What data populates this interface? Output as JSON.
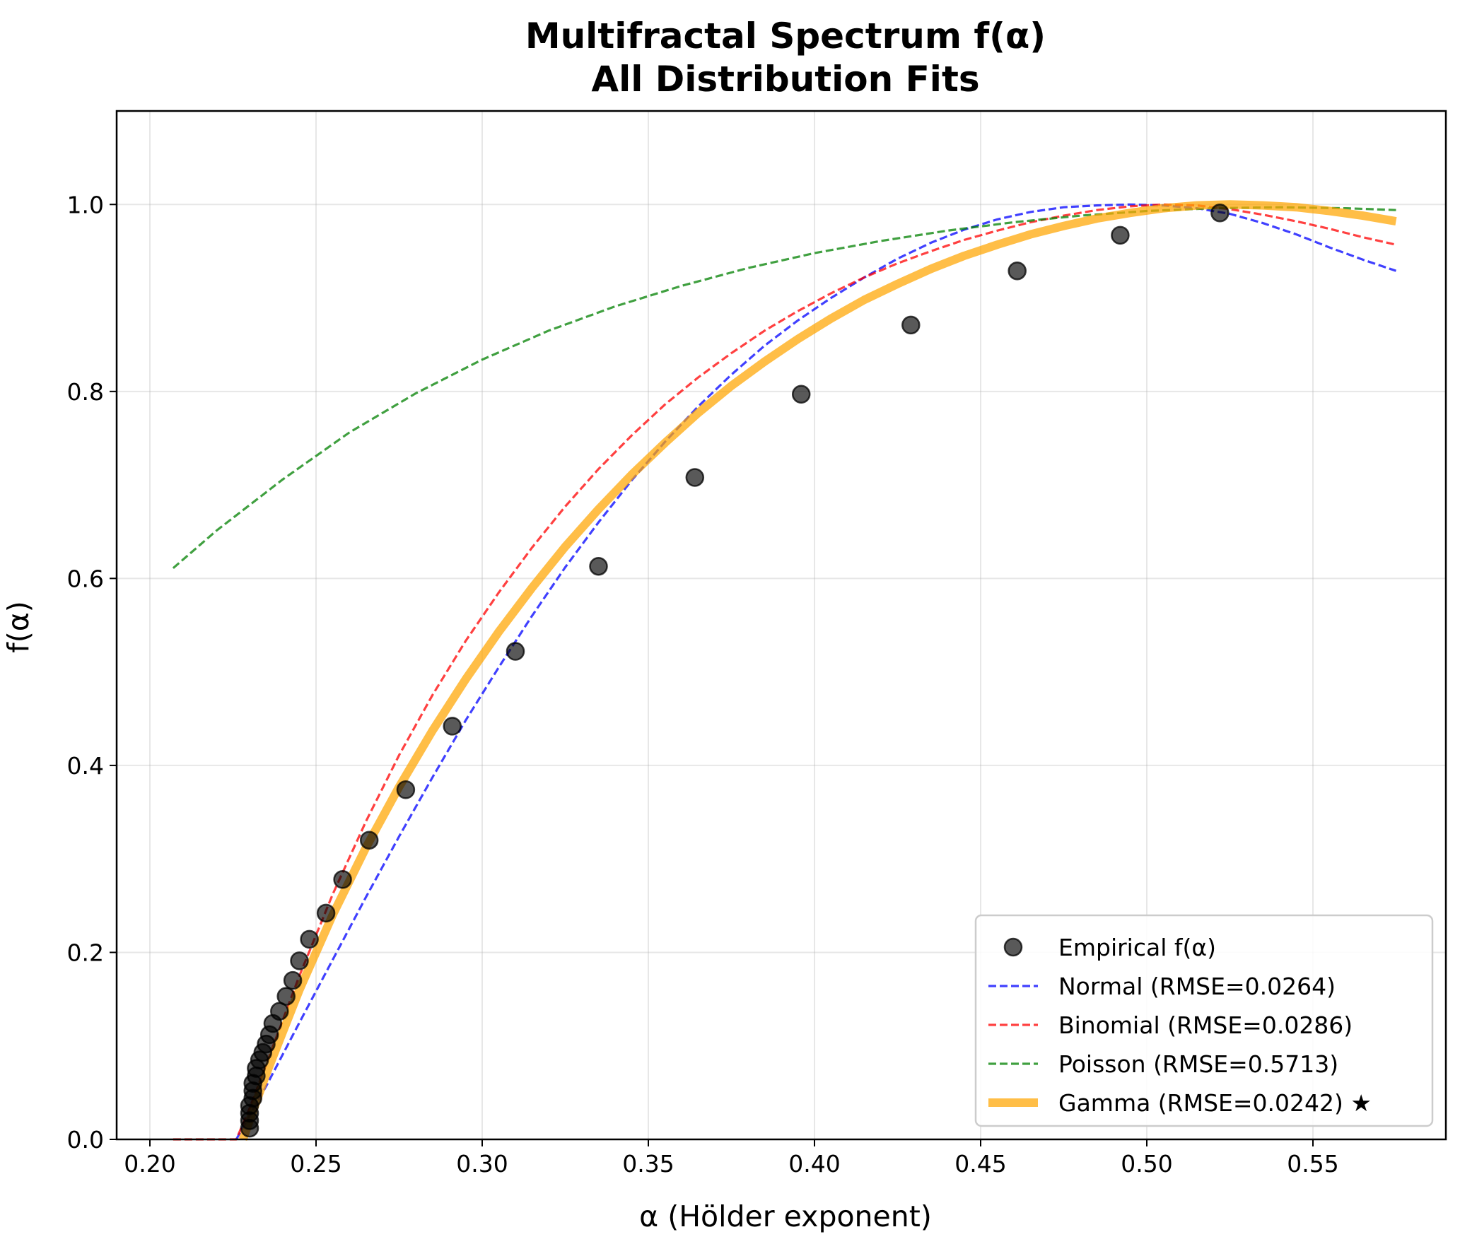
{
  "chart_data": {
    "type": "scatter",
    "title": "Multifractal Spectrum f(α)",
    "subtitle": "All Distribution Fits",
    "xlabel": "α (Hölder exponent)",
    "ylabel": "f(α)",
    "xlim": [
      0.19,
      0.59
    ],
    "ylim": [
      0.0,
      1.1
    ],
    "xticks": [
      "0.20",
      "0.25",
      "0.30",
      "0.35",
      "0.40",
      "0.45",
      "0.50",
      "0.55"
    ],
    "yticks": [
      "0.0",
      "0.2",
      "0.4",
      "0.6",
      "0.8",
      "1.0"
    ],
    "grid": true,
    "legend_position": "lower right",
    "empirical": {
      "name": "Empirical f(α)",
      "color": "#000000",
      "points": [
        [
          0.23,
          0.012
        ],
        [
          0.23,
          0.02
        ],
        [
          0.23,
          0.028
        ],
        [
          0.23,
          0.036
        ],
        [
          0.231,
          0.044
        ],
        [
          0.231,
          0.052
        ],
        [
          0.231,
          0.06
        ],
        [
          0.232,
          0.068
        ],
        [
          0.232,
          0.076
        ],
        [
          0.233,
          0.085
        ],
        [
          0.234,
          0.093
        ],
        [
          0.235,
          0.102
        ],
        [
          0.236,
          0.112
        ],
        [
          0.237,
          0.124
        ],
        [
          0.239,
          0.137
        ],
        [
          0.241,
          0.153
        ],
        [
          0.243,
          0.17
        ],
        [
          0.245,
          0.191
        ],
        [
          0.248,
          0.214
        ],
        [
          0.253,
          0.242
        ],
        [
          0.258,
          0.278
        ],
        [
          0.266,
          0.32
        ],
        [
          0.277,
          0.374
        ],
        [
          0.291,
          0.442
        ],
        [
          0.31,
          0.522
        ],
        [
          0.335,
          0.613
        ],
        [
          0.364,
          0.708
        ],
        [
          0.396,
          0.797
        ],
        [
          0.429,
          0.871
        ],
        [
          0.461,
          0.929
        ],
        [
          0.492,
          0.967
        ],
        [
          0.522,
          0.991
        ]
      ]
    },
    "series": [
      {
        "name": "Normal (RMSE=0.0264)",
        "color": "#0000ff",
        "style": "dashed",
        "x": [
          0.226,
          0.235,
          0.245,
          0.255,
          0.265,
          0.275,
          0.285,
          0.295,
          0.305,
          0.315,
          0.325,
          0.335,
          0.345,
          0.355,
          0.365,
          0.375,
          0.385,
          0.395,
          0.405,
          0.415,
          0.425,
          0.435,
          0.445,
          0.455,
          0.465,
          0.475,
          0.485,
          0.495,
          0.505,
          0.515,
          0.525,
          0.535,
          0.545,
          0.555,
          0.565,
          0.575
        ],
        "y": [
          0.0,
          0.057,
          0.125,
          0.192,
          0.259,
          0.324,
          0.387,
          0.448,
          0.505,
          0.56,
          0.612,
          0.66,
          0.705,
          0.746,
          0.784,
          0.818,
          0.849,
          0.876,
          0.9,
          0.922,
          0.942,
          0.959,
          0.973,
          0.984,
          0.992,
          0.997,
          0.999,
          1.0,
          0.999,
          0.996,
          0.99,
          0.98,
          0.968,
          0.954,
          0.941,
          0.929
        ]
      },
      {
        "name": "Binomial (RMSE=0.0286)",
        "color": "#ff0000",
        "style": "dashed",
        "x": [
          0.207,
          0.226,
          0.23,
          0.235,
          0.245,
          0.255,
          0.265,
          0.275,
          0.285,
          0.295,
          0.305,
          0.315,
          0.325,
          0.335,
          0.345,
          0.355,
          0.365,
          0.375,
          0.385,
          0.395,
          0.405,
          0.415,
          0.425,
          0.435,
          0.445,
          0.455,
          0.465,
          0.475,
          0.485,
          0.495,
          0.505,
          0.515,
          0.525,
          0.535,
          0.545,
          0.555,
          0.565,
          0.575
        ],
        "y": [
          0.0,
          0.0,
          0.033,
          0.08,
          0.175,
          0.262,
          0.34,
          0.411,
          0.475,
          0.533,
          0.585,
          0.633,
          0.677,
          0.717,
          0.753,
          0.786,
          0.815,
          0.841,
          0.865,
          0.886,
          0.905,
          0.922,
          0.937,
          0.95,
          0.962,
          0.972,
          0.981,
          0.988,
          0.994,
          0.998,
          1.0,
          0.999,
          0.995,
          0.989,
          0.982,
          0.974,
          0.965,
          0.957
        ]
      },
      {
        "name": "Poisson (RMSE=0.5713)",
        "color": "#008000",
        "style": "dashed",
        "x": [
          0.207,
          0.22,
          0.24,
          0.26,
          0.28,
          0.3,
          0.32,
          0.34,
          0.36,
          0.38,
          0.4,
          0.42,
          0.44,
          0.46,
          0.48,
          0.5,
          0.52,
          0.54,
          0.56,
          0.575
        ],
        "y": [
          0.611,
          0.651,
          0.706,
          0.756,
          0.798,
          0.834,
          0.865,
          0.891,
          0.913,
          0.932,
          0.948,
          0.961,
          0.972,
          0.981,
          0.988,
          0.993,
          0.996,
          0.997,
          0.996,
          0.994
        ]
      },
      {
        "name": "Gamma (RMSE=0.0242) ★",
        "color": "#ffa500",
        "style": "solid",
        "x": [
          0.228,
          0.23,
          0.235,
          0.245,
          0.255,
          0.265,
          0.275,
          0.285,
          0.295,
          0.305,
          0.315,
          0.325,
          0.335,
          0.345,
          0.355,
          0.365,
          0.375,
          0.385,
          0.395,
          0.405,
          0.415,
          0.425,
          0.435,
          0.445,
          0.455,
          0.465,
          0.475,
          0.485,
          0.495,
          0.505,
          0.515,
          0.525,
          0.535,
          0.545,
          0.555,
          0.565,
          0.575
        ],
        "y": [
          0.0,
          0.02,
          0.07,
          0.16,
          0.24,
          0.312,
          0.377,
          0.437,
          0.492,
          0.543,
          0.59,
          0.634,
          0.674,
          0.711,
          0.745,
          0.777,
          0.806,
          0.832,
          0.856,
          0.878,
          0.898,
          0.915,
          0.931,
          0.945,
          0.957,
          0.968,
          0.977,
          0.985,
          0.991,
          0.996,
          0.999,
          1.0,
          0.999,
          0.997,
          0.993,
          0.988,
          0.982
        ]
      }
    ]
  }
}
